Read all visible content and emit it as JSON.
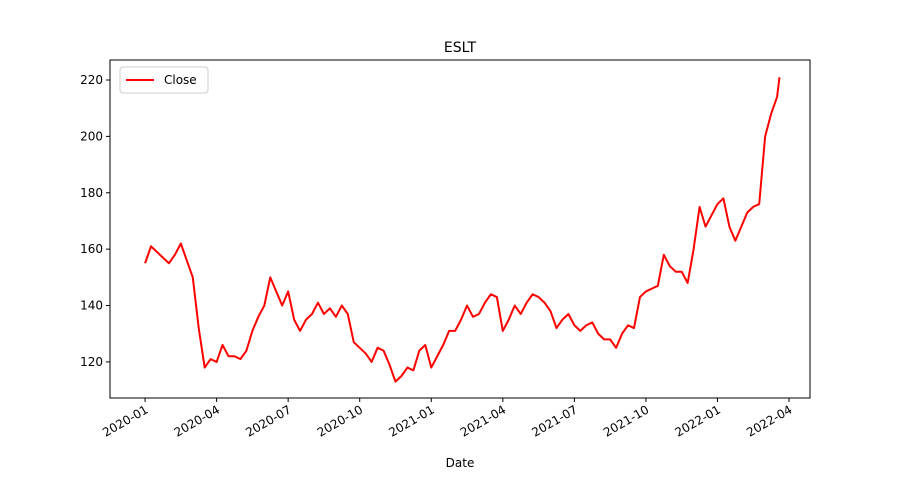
{
  "chart_data": {
    "type": "line",
    "title": "ESLT",
    "xlabel": "Date",
    "x": [
      0,
      0.25,
      0.5,
      0.75,
      1,
      1.25,
      1.5,
      1.75,
      2,
      2.25,
      2.5,
      2.75,
      3,
      3.25,
      3.5,
      3.75,
      4,
      4.25,
      4.5,
      4.75,
      5,
      5.25,
      5.5,
      5.75,
      6,
      6.25,
      6.5,
      6.75,
      7,
      7.25,
      7.5,
      7.75,
      8,
      8.25,
      8.5,
      8.75,
      9,
      9.25,
      9.5,
      9.75,
      10,
      10.25,
      10.5,
      10.75,
      11,
      11.25,
      11.5,
      11.75,
      12,
      12.25,
      12.5,
      12.75,
      13,
      13.25,
      13.5,
      13.75,
      14,
      14.25,
      14.5,
      14.75,
      15,
      15.25,
      15.5,
      15.75,
      16,
      16.25,
      16.5,
      16.75,
      17,
      17.25,
      17.5,
      17.75,
      18,
      18.25,
      18.5,
      18.75,
      19,
      19.25,
      19.5,
      19.75,
      20,
      20.25,
      20.5,
      20.75,
      21,
      21.25,
      21.5,
      21.75,
      22,
      22.25,
      22.5,
      22.75,
      23,
      23.25,
      23.5,
      23.75,
      24,
      24.25,
      24.5,
      24.75,
      25,
      25.25,
      25.5,
      25.75,
      26,
      26.25,
      26.5,
      26.6
    ],
    "series": [
      {
        "name": "Close",
        "color": "#ff0000",
        "values": [
          155,
          161,
          159,
          157,
          155,
          158,
          162,
          156,
          150,
          132,
          118,
          121,
          120,
          126,
          122,
          122,
          121,
          124,
          131,
          136,
          140,
          150,
          145,
          140,
          145,
          135,
          131,
          135,
          137,
          141,
          137,
          139,
          136,
          140,
          137,
          127,
          125,
          123,
          120,
          125,
          124,
          119,
          113,
          115,
          118,
          117,
          124,
          126,
          118,
          122,
          126,
          131,
          131,
          135,
          140,
          136,
          137,
          141,
          144,
          143,
          131,
          135,
          140,
          137,
          141,
          144,
          143,
          141,
          138,
          132,
          135,
          137,
          133,
          131,
          133,
          134,
          130,
          128,
          128,
          125,
          130,
          133,
          132,
          143,
          145,
          146,
          147,
          158,
          154,
          152,
          152,
          148,
          160,
          175,
          168,
          172,
          176,
          178,
          168,
          163,
          168,
          173,
          175,
          176,
          200,
          208,
          214,
          221
        ]
      }
    ],
    "xlim": [
      -1.47,
      27.88
    ],
    "xticks": [
      {
        "value": 0,
        "label": "2020-01"
      },
      {
        "value": 3,
        "label": "2020-04"
      },
      {
        "value": 6,
        "label": "2020-07"
      },
      {
        "value": 9,
        "label": "2020-10"
      },
      {
        "value": 12,
        "label": "2021-01"
      },
      {
        "value": 15,
        "label": "2021-04"
      },
      {
        "value": 18,
        "label": "2021-07"
      },
      {
        "value": 21,
        "label": "2021-10"
      },
      {
        "value": 24,
        "label": "2022-01"
      },
      {
        "value": 27,
        "label": "2022-04"
      }
    ],
    "ylim": [
      107.2,
      227.1
    ],
    "yticks": [
      120,
      140,
      160,
      180,
      200,
      220
    ],
    "legend": "upper left"
  }
}
